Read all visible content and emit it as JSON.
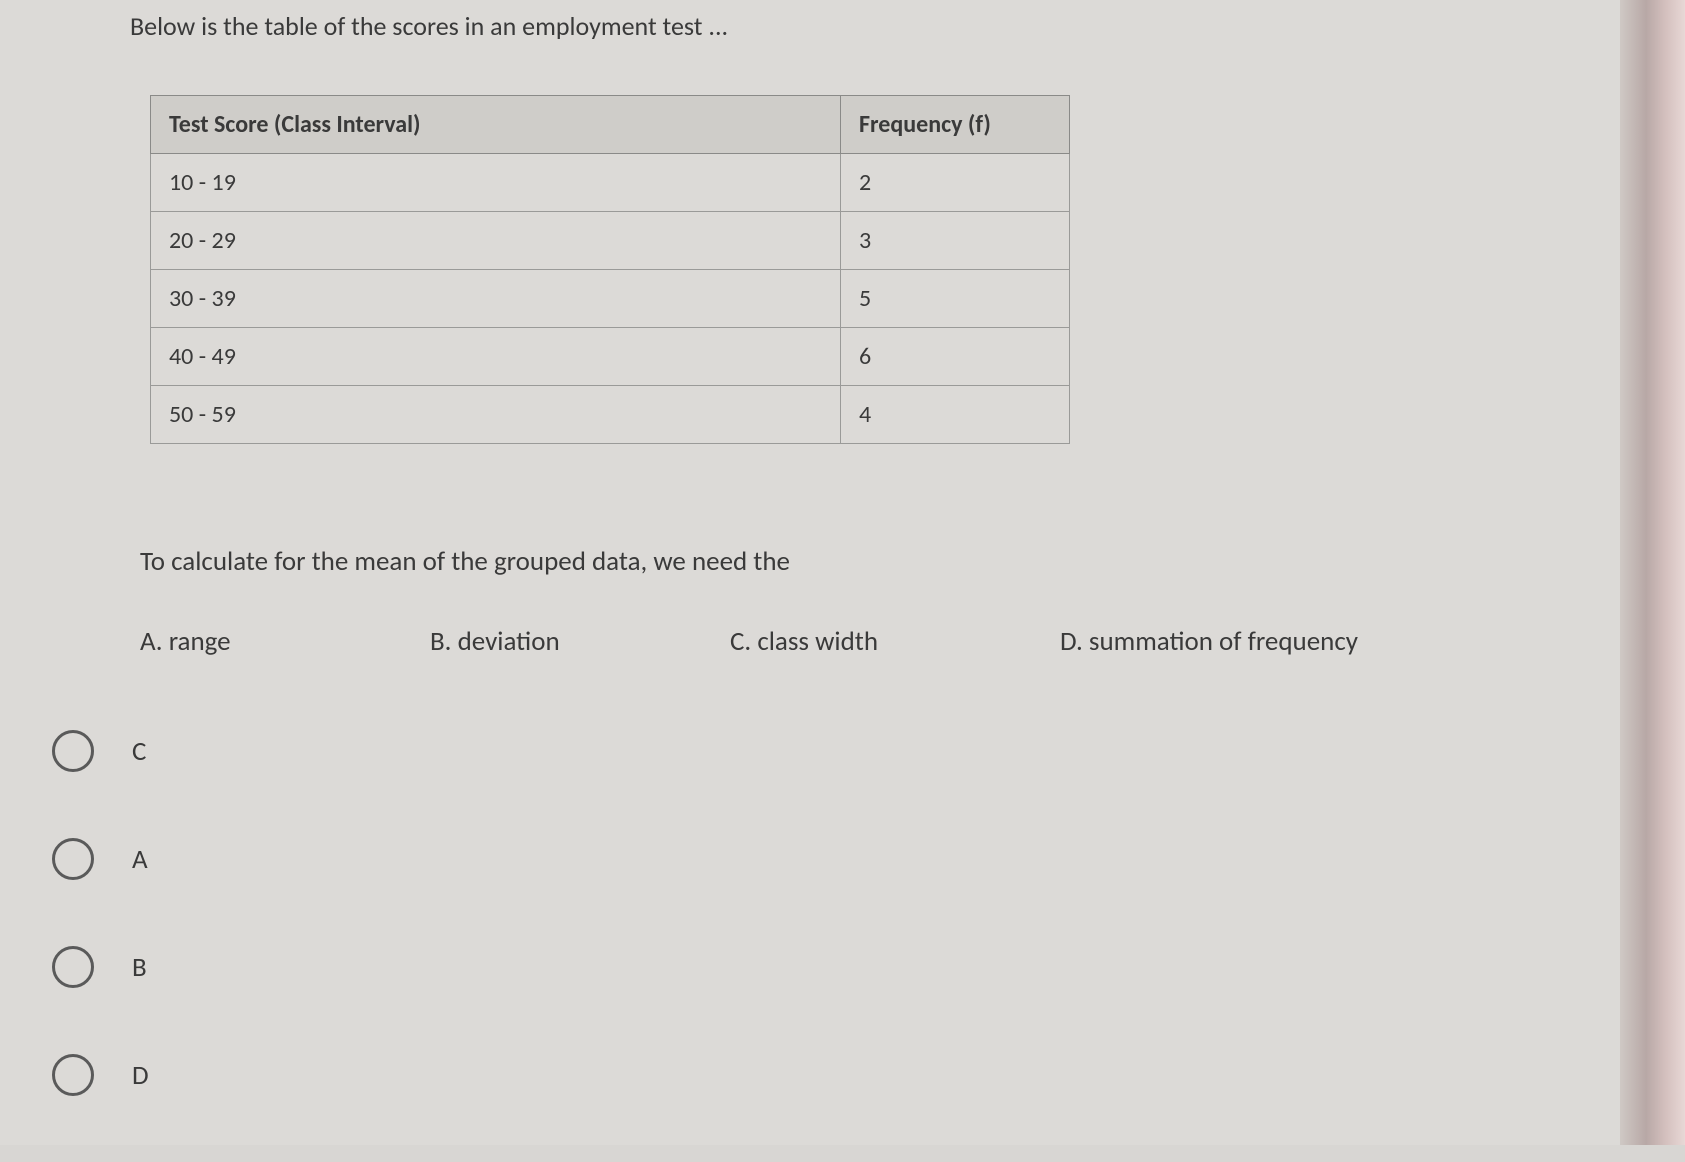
{
  "intro": "Below is the table of the scores in an employment test ...",
  "table": {
    "headers": [
      "Test Score (Class Interval)",
      "Frequency (f)"
    ],
    "rows": [
      [
        "10 - 19",
        "2"
      ],
      [
        "20 - 29",
        "3"
      ],
      [
        "30 - 39",
        "5"
      ],
      [
        "40 - 49",
        "6"
      ],
      [
        "50 - 59",
        "4"
      ]
    ]
  },
  "question": "To calculate for the mean of the grouped data, we need the",
  "choices": {
    "a": "A.  range",
    "b": "B.  deviation",
    "c": "C.  class width",
    "d": "D.  summation of frequency"
  },
  "radios": [
    {
      "label": "C"
    },
    {
      "label": "A"
    },
    {
      "label": "B"
    },
    {
      "label": "D"
    }
  ],
  "colors": {
    "background": "#dcdad7",
    "tableHeader": "#cfcdc9",
    "border": "#8a8a88",
    "text": "#3a3a3a"
  }
}
